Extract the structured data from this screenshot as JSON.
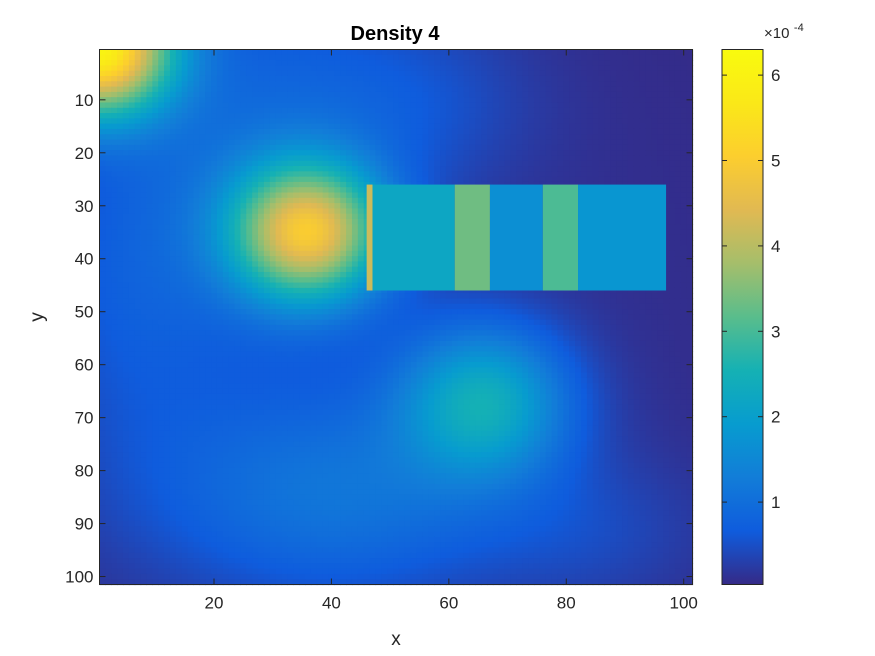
{
  "chart_data": {
    "type": "heatmap",
    "title": "Density 4",
    "xlabel": "x",
    "ylabel": "y",
    "xlim": [
      1,
      101
    ],
    "ylim": [
      1,
      101
    ],
    "y_direction": "reversed",
    "xticks": [
      20,
      40,
      60,
      80,
      100
    ],
    "yticks": [
      10,
      20,
      30,
      40,
      50,
      60,
      70,
      80,
      90,
      100
    ],
    "colormap": "parula",
    "colorbar": {
      "range": [
        3.5e-06,
        0.00063
      ],
      "ticks": [
        1,
        2,
        3,
        4,
        5,
        6
      ],
      "multiplier": "×10",
      "exponent": "-4"
    },
    "density_components": [
      {
        "x": 0,
        "y": 0,
        "sx": 9,
        "sy": 9,
        "peak": 0.00058
      },
      {
        "x": 36,
        "y": 35,
        "sx": 9,
        "sy": 9,
        "peak": 0.00043
      },
      {
        "x": 66,
        "y": 67,
        "sx": 10,
        "sy": 10,
        "peak": 0.000215
      },
      {
        "x": 40,
        "y": 85,
        "sx": 22,
        "sy": 14,
        "peak": 0.0001
      },
      {
        "x": 28,
        "y": 20,
        "sx": 16,
        "sy": 28,
        "peak": 7e-05
      },
      {
        "x": 5,
        "y": 45,
        "sx": 12,
        "sy": 25,
        "peak": 5e-05
      },
      {
        "x": 55,
        "y": 10,
        "sx": 14,
        "sy": 12,
        "peak": 4e-05
      },
      {
        "x": 85,
        "y": 92,
        "sx": 14,
        "sy": 10,
        "peak": 3e-05
      },
      {
        "x": 50,
        "y": 50,
        "sx": 40,
        "sy": 40,
        "peak": 1e-05
      }
    ],
    "overlay_segments": [
      {
        "x0": 46,
        "x1": 47,
        "y0": 26,
        "y1": 46,
        "value": 0.00042
      },
      {
        "x0": 47,
        "x1": 61,
        "y0": 26,
        "y1": 46,
        "value": 0.00022
      },
      {
        "x0": 61,
        "x1": 67,
        "y0": 26,
        "y1": 46,
        "value": 0.000335
      },
      {
        "x0": 67,
        "x1": 76,
        "y0": 26,
        "y1": 46,
        "value": 0.000165
      },
      {
        "x0": 76,
        "x1": 82,
        "y0": 26,
        "y1": 46,
        "value": 0.000305
      },
      {
        "x0": 82,
        "x1": 97,
        "y0": 26,
        "y1": 46,
        "value": 0.00018
      }
    ]
  }
}
